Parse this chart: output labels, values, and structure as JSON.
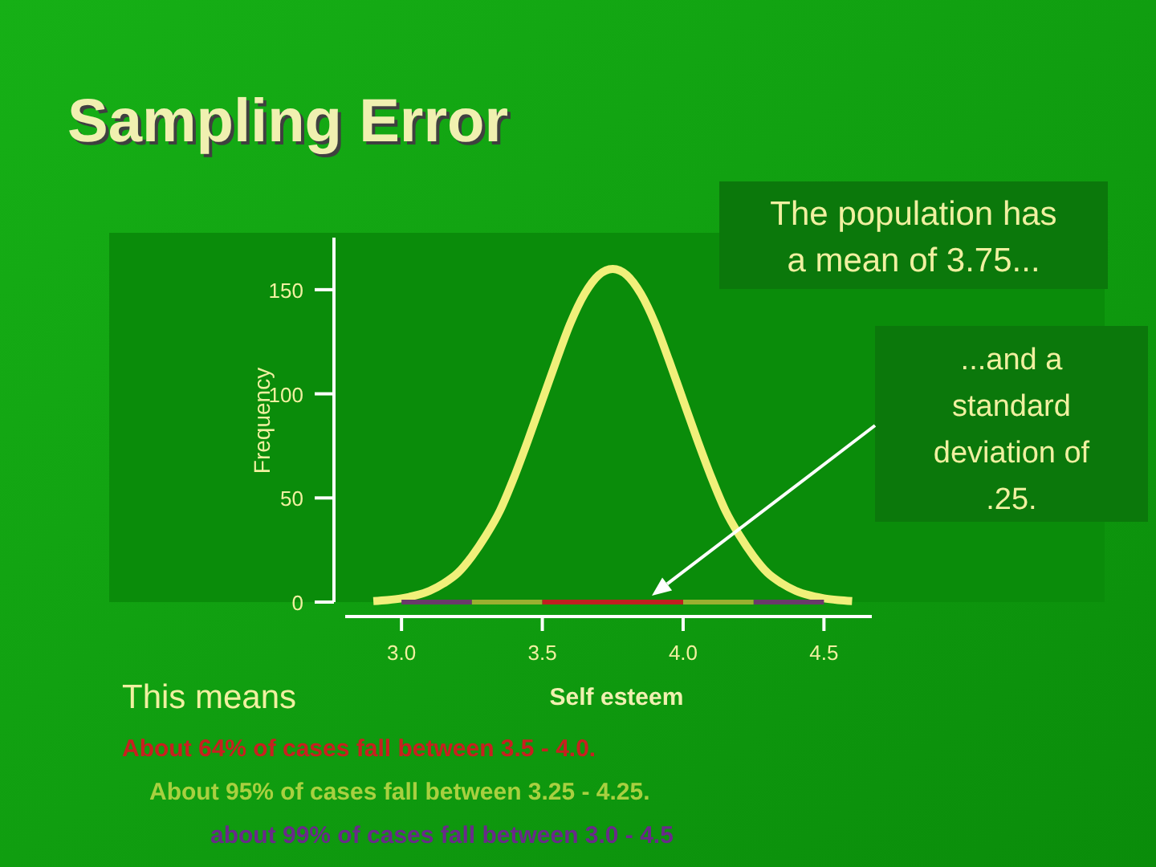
{
  "chart_data": {
    "type": "line",
    "title": "Sampling Error",
    "xlabel": "Self esteem",
    "ylabel": "Frequency",
    "x": [
      2.9,
      2.95,
      3.0,
      3.05,
      3.1,
      3.15,
      3.2,
      3.25,
      3.3,
      3.35,
      3.4,
      3.45,
      3.5,
      3.55,
      3.6,
      3.65,
      3.7,
      3.75,
      3.8,
      3.85,
      3.9,
      3.95,
      4.0,
      4.05,
      4.1,
      4.15,
      4.2,
      4.25,
      4.3,
      4.35,
      4.4,
      4.45,
      4.5,
      4.55,
      4.6
    ],
    "series": [
      {
        "color": "#6a3a6a",
        "x": [
          3.0,
          3.25,
          3.75,
          4.25,
          4.5
        ],
        "values": [
          0,
          0,
          null,
          0,
          0
        ]
      },
      {
        "color": "#9ab030",
        "x": [
          3.25,
          3.5,
          3.75,
          4.0,
          4.25
        ],
        "values": [
          0,
          0,
          null,
          0,
          0
        ]
      },
      {
        "color": "#c02020",
        "x": [
          3.5,
          3.75,
          4.0
        ],
        "values": [
          0,
          0,
          0
        ]
      },
      {
        "color": "#f0f07a",
        "values": [
          0.5,
          1,
          1.8,
          3.2,
          5.4,
          9,
          14,
          22,
          32,
          44,
          60,
          78,
          97,
          116,
          134,
          148,
          157,
          160,
          157,
          148,
          134,
          116,
          97,
          78,
          60,
          44,
          32,
          22,
          14,
          9,
          5.4,
          3.2,
          1.8,
          1,
          0.5
        ]
      }
    ],
    "xlim": [
      2.8,
      4.67
    ],
    "xticks": [
      {
        "value": 3,
        "label": "3.0"
      },
      3.5,
      {
        "value": 4,
        "label": "4.0"
      },
      4.5
    ],
    "ylim": [
      0,
      175
    ],
    "yticks": [
      0,
      50,
      100,
      150
    ],
    "grid": false,
    "marker": "none",
    "line_style": "solid",
    "annotations": [
      "The population has a mean of 3.75...",
      "...and a standard deviation of .25.",
      "This means",
      "About 64% of cases fall between 3.5 - 4.0.",
      "About 95% of cases fall between 3.25 - 4.25.",
      "about 99% of cases fall between 3.0 - 4.5"
    ]
  }
}
